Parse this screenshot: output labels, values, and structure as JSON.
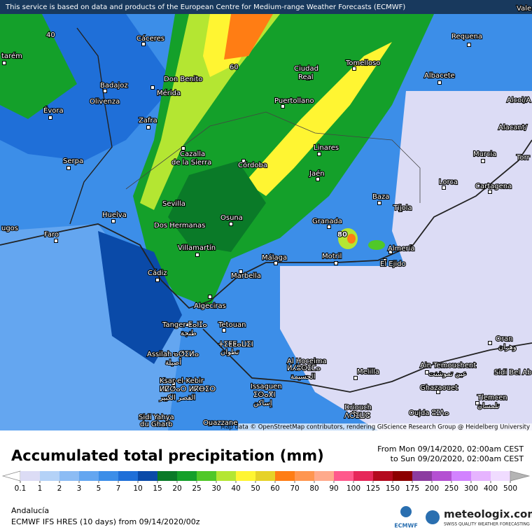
{
  "header": {
    "notice": "This service is based on data and products of the European Centre for Medium-range Weather Forecasts (ECMWF)"
  },
  "map": {
    "attribution": "Map data © OpenStreetMap contributors, rendering GIScience Research Group @ Heidelberg University",
    "labels": [
      "Cáceres",
      "Requena",
      "Vale",
      "tarém",
      "Badajoz",
      "Don Benito",
      "Mérida",
      "Ciudad",
      "Real",
      "Tomelloso",
      "Albacete",
      "Olivenza",
      "Évora",
      "Puertollano",
      "Alcoi/A",
      "Zafra",
      "Alacant/",
      "Serpa",
      "Cazalla",
      "de la Sierra",
      "Córdoba",
      "Linares",
      "Murcia",
      "Torr",
      "Jaén",
      "Lorca",
      "Cartagena",
      "Baza",
      "Sevilla",
      "Huelva",
      "Tíjola",
      "Osuna",
      "Granada",
      "Dos Hermanas",
      "ugos",
      "Faro",
      "Almería",
      "Villamartín",
      "Málaga",
      "Motril",
      "El Ejido",
      "Cádiz",
      "Marbella",
      "Algeciras",
      "Tanger ⵟⴰⵏⵊⴰ",
      "طنجة",
      "Tetouan",
      "ⵜⵉⵟⵟⴰⵡⵉⵏ",
      "تطوان",
      "Assilah ⴰⵚⵉⵍⴰ",
      "أصيلة",
      "Ksar-el-Kebir",
      "ⵍⵇⵚⴰⵔ ⵍⴽⴱⵉⵔ",
      "القصر الكبير",
      "Al Hoceima",
      "ⵍⵃⵓⵙⵉⵎⴰ",
      "الحسيمة",
      "Melilla",
      "Issaguen",
      "ⵉⵙⴰⴳⵏ",
      "إساكن",
      "Driouch",
      "ⴷⵔⵉⵡⵛ",
      "Ain Temouchent",
      "عين تموشنت",
      "Oran",
      "وهران",
      "Sidi Bel Ab",
      "Ghazaouet",
      "Tlemcen",
      "تلمسان",
      "Oujda ⵓⵊⴷⴰ",
      "Sidi Yahya",
      "du Gharb",
      "Ouazzane"
    ],
    "contours": [
      "40",
      "60",
      "80"
    ]
  },
  "legend": {
    "title": "Accumulated total precipitation (mm)",
    "period_from": "From Mon 09/14/2020, 02:00am CEST",
    "period_to": "to Sun 09/20/2020, 02:00am CEST",
    "ticks": [
      0.1,
      1,
      2,
      3,
      5,
      7,
      10,
      15,
      20,
      25,
      30,
      40,
      50,
      60,
      70,
      80,
      90,
      100,
      125,
      150,
      175,
      200,
      250,
      300,
      400,
      500
    ],
    "colors": [
      "#dcdcf5",
      "#b4d2f7",
      "#8cbcf4",
      "#64a6f0",
      "#3c8ee8",
      "#1f6fd8",
      "#0a4aa8",
      "#0a7a28",
      "#14a02a",
      "#50c828",
      "#b4e632",
      "#fff532",
      "#e6d228",
      "#ff7d14",
      "#ff9650",
      "#ffaa8c",
      "#ff5a8c",
      "#e6285a",
      "#b40a1e",
      "#8c0000",
      "#8c3ca0",
      "#b450d2",
      "#d282ff",
      "#e6b4ff",
      "#f0dcff"
    ],
    "below_color": "#ffffff",
    "above_color": "#b4b4b4"
  },
  "footer": {
    "region": "Andalucía",
    "model": "ECMWF IFS HRES (10 days) from 09/14/2020/00z",
    "ecmwf": "ECMWF",
    "brand": "meteologix.com",
    "tagline": "SWISS QUALITY WEATHER FORECASTING"
  }
}
